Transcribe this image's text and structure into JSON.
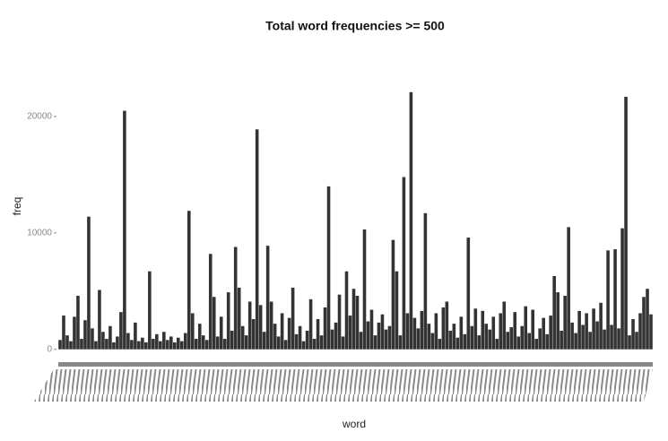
{
  "chart_data": {
    "type": "bar",
    "title": "Total word frequencies >= 500",
    "x_label": "word",
    "y_label": "freq",
    "color": "#333333",
    "ylim": [
      -1100,
      22700
    ],
    "yticks": [
      0,
      10000,
      20000
    ],
    "grid": false,
    "categories": [
      null,
      null,
      null,
      null,
      null,
      null,
      null,
      null,
      null,
      null,
      null,
      null,
      null,
      null,
      null,
      null,
      null,
      null,
      null,
      null,
      null,
      null,
      null,
      null,
      null,
      null,
      null,
      null,
      null,
      null,
      null,
      null,
      null,
      null,
      null,
      null,
      null,
      null,
      null,
      null,
      null,
      null,
      null,
      null,
      null,
      null,
      null,
      null,
      null,
      null,
      null,
      null,
      null,
      null,
      null,
      null,
      null,
      null,
      null,
      null,
      null,
      null,
      null,
      null,
      null,
      null,
      null,
      null,
      null,
      null,
      null,
      null,
      null,
      null,
      null,
      null,
      null,
      null,
      null,
      null,
      null,
      null,
      null,
      null,
      null,
      null,
      null,
      null,
      null,
      null,
      null,
      null,
      null,
      null,
      null,
      null,
      null,
      null,
      null,
      null,
      null,
      null,
      null,
      null,
      null,
      null,
      null,
      null,
      null,
      null,
      null,
      null,
      null,
      null,
      null,
      null,
      null,
      null,
      null,
      null,
      null,
      null,
      null,
      null,
      null,
      null,
      null,
      null,
      null,
      null,
      null,
      null,
      null,
      null,
      null,
      null,
      null,
      null,
      null,
      null,
      null,
      null,
      null,
      null,
      null,
      null,
      null,
      null,
      null,
      null,
      null,
      null,
      null,
      null,
      null,
      null,
      null,
      null,
      null,
      null,
      null,
      null,
      null,
      null,
      null,
      null
    ],
    "values": [
      800,
      2900,
      1200,
      700,
      2800,
      4600,
      900,
      2500,
      11400,
      1800,
      700,
      5100,
      1500,
      900,
      2000,
      600,
      1100,
      3200,
      20500,
      1400,
      800,
      2300,
      700,
      1000,
      600,
      6700,
      900,
      1300,
      700,
      1500,
      800,
      1100,
      600,
      1000,
      700,
      1400,
      11900,
      3100,
      900,
      2200,
      1200,
      800,
      8200,
      4500,
      1100,
      2800,
      900,
      4900,
      1600,
      8800,
      5300,
      2000,
      1200,
      4100,
      2600,
      18900,
      3800,
      1500,
      8900,
      4100,
      2200,
      1100,
      3100,
      800,
      2700,
      5300,
      1300,
      2000,
      700,
      1600,
      4300,
      900,
      2600,
      1200,
      3600,
      14000,
      1700,
      2300,
      4700,
      1100,
      6700,
      2900,
      5200,
      4600,
      1500,
      10300,
      2400,
      3400,
      1200,
      2300,
      3000,
      1700,
      2000,
      9400,
      6700,
      1200,
      14800,
      3100,
      22100,
      2700,
      1800,
      3300,
      11700,
      2200,
      1400,
      3100,
      900,
      3600,
      4100,
      1600,
      2200,
      1000,
      2800,
      1300,
      9600,
      2000,
      3500,
      1200,
      3300,
      2200,
      1700,
      2800,
      900,
      3100,
      4100,
      1500,
      1900,
      3200,
      1100,
      2000,
      3700,
      1400,
      3400,
      900,
      1800,
      2700,
      1300,
      2900,
      6300,
      4900,
      1600,
      4600,
      10500,
      2300,
      1400,
      3300,
      2100,
      3100,
      1500,
      3500,
      2400,
      4000,
      1700,
      8500,
      2100,
      8600,
      1800,
      10400,
      21700,
      1200,
      2600,
      1500,
      3100,
      4500,
      5200,
      3000
    ]
  }
}
